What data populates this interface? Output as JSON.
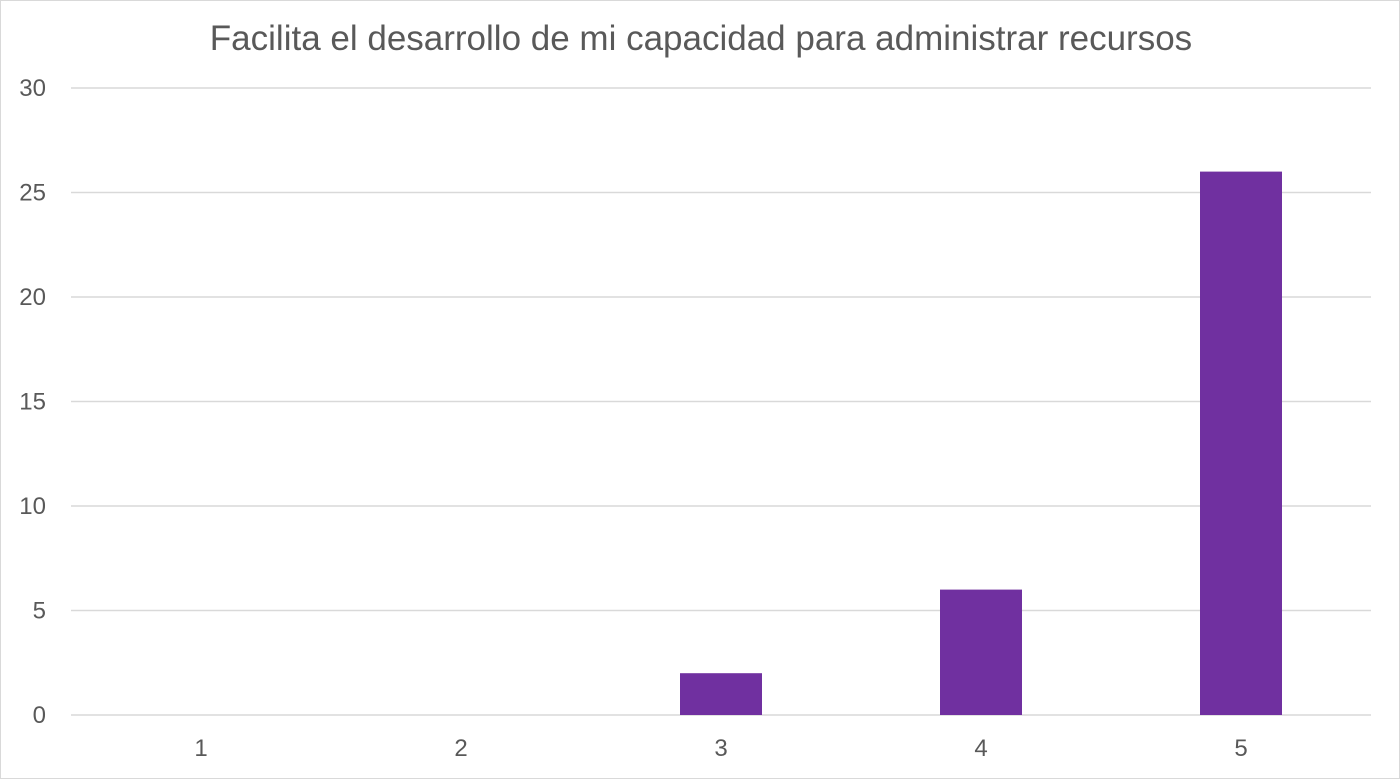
{
  "chart_data": {
    "type": "bar",
    "title": "Facilita el desarrollo de mi capacidad para administrar recursos",
    "categories": [
      "1",
      "2",
      "3",
      "4",
      "5"
    ],
    "values": [
      0,
      0,
      2,
      6,
      26
    ],
    "xlabel": "",
    "ylabel": "",
    "ylim": [
      0,
      30
    ],
    "yticks": [
      "0",
      "5",
      "10",
      "15",
      "20",
      "25",
      "30"
    ],
    "grid": true,
    "legend": "none",
    "colors": {
      "bar": "#7030a0",
      "grid": "#d9d9d9",
      "text": "#595959"
    }
  }
}
